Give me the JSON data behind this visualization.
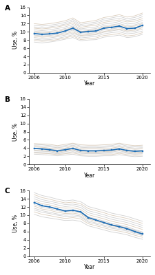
{
  "years": [
    2006,
    2007,
    2008,
    2009,
    2010,
    2011,
    2012,
    2013,
    2014,
    2015,
    2016,
    2017,
    2018,
    2019,
    2020
  ],
  "panel_A": {
    "mean_line": [
      9.6,
      9.4,
      9.5,
      9.7,
      10.2,
      10.9,
      9.9,
      10.1,
      10.2,
      10.9,
      11.1,
      11.4,
      10.8,
      10.9,
      11.6
    ],
    "region_lines": [
      [
        7.5,
        7.3,
        7.5,
        7.8,
        8.2,
        8.6,
        7.8,
        8.0,
        8.1,
        8.7,
        8.9,
        9.2,
        8.6,
        8.8,
        9.4
      ],
      [
        7.9,
        7.7,
        7.8,
        8.1,
        8.5,
        9.0,
        8.1,
        8.3,
        8.5,
        9.1,
        9.3,
        9.6,
        9.0,
        9.2,
        9.8
      ],
      [
        8.2,
        8.0,
        8.1,
        8.4,
        8.8,
        9.3,
        8.5,
        8.7,
        8.9,
        9.5,
        9.8,
        10.0,
        9.5,
        9.7,
        10.2
      ],
      [
        8.6,
        8.4,
        8.5,
        8.8,
        9.2,
        9.7,
        8.9,
        9.1,
        9.3,
        9.9,
        10.2,
        10.5,
        9.9,
        10.1,
        10.7
      ],
      [
        8.9,
        8.7,
        8.8,
        9.1,
        9.5,
        10.0,
        9.1,
        9.3,
        9.5,
        10.1,
        10.4,
        10.7,
        10.2,
        10.4,
        11.0
      ],
      [
        9.2,
        9.0,
        9.1,
        9.4,
        9.8,
        10.4,
        9.4,
        9.6,
        9.8,
        10.5,
        10.7,
        11.0,
        10.5,
        10.7,
        11.3
      ],
      [
        9.5,
        9.3,
        9.4,
        9.7,
        10.1,
        10.7,
        9.7,
        9.9,
        10.1,
        10.8,
        11.0,
        11.3,
        10.8,
        11.0,
        11.6
      ],
      [
        9.9,
        9.7,
        9.8,
        10.1,
        10.5,
        11.1,
        10.1,
        10.3,
        10.5,
        11.2,
        11.4,
        11.7,
        11.2,
        11.4,
        12.0
      ],
      [
        10.2,
        10.0,
        10.1,
        10.4,
        10.8,
        11.4,
        10.4,
        10.6,
        10.8,
        11.5,
        11.7,
        12.0,
        11.5,
        11.7,
        12.3
      ],
      [
        10.5,
        10.3,
        10.5,
        10.8,
        11.2,
        11.8,
        10.7,
        11.0,
        11.2,
        11.9,
        12.1,
        12.5,
        11.9,
        12.1,
        12.8
      ],
      [
        10.9,
        10.7,
        10.9,
        11.2,
        11.6,
        12.2,
        11.1,
        11.4,
        11.6,
        12.3,
        12.6,
        12.9,
        12.4,
        12.6,
        13.2
      ],
      [
        11.2,
        11.0,
        11.2,
        11.5,
        11.9,
        12.6,
        11.4,
        11.7,
        12.0,
        12.7,
        13.0,
        13.3,
        12.8,
        13.0,
        13.7
      ],
      [
        11.6,
        11.4,
        11.6,
        11.9,
        12.3,
        13.0,
        11.8,
        12.1,
        12.4,
        13.1,
        13.4,
        13.8,
        13.2,
        13.5,
        14.2
      ],
      [
        12.0,
        11.8,
        12.0,
        12.3,
        12.7,
        13.4,
        12.2,
        12.5,
        12.8,
        13.5,
        13.8,
        14.2,
        13.6,
        13.9,
        14.6
      ]
    ],
    "ylim": [
      0,
      16
    ],
    "yticks": [
      0,
      2,
      4,
      6,
      8,
      10,
      12,
      14,
      16
    ],
    "ylabel": "Use, %",
    "label": "A"
  },
  "panel_B": {
    "mean_line": [
      3.9,
      3.8,
      3.6,
      3.3,
      3.6,
      3.9,
      3.4,
      3.3,
      3.3,
      3.4,
      3.5,
      3.8,
      3.4,
      3.2,
      3.3
    ],
    "region_lines": [
      [
        2.5,
        2.4,
        2.3,
        2.1,
        2.3,
        2.5,
        2.1,
        2.0,
        2.0,
        2.1,
        2.1,
        2.4,
        2.1,
        1.9,
        2.0
      ],
      [
        2.8,
        2.7,
        2.6,
        2.4,
        2.6,
        2.8,
        2.4,
        2.3,
        2.3,
        2.4,
        2.4,
        2.7,
        2.4,
        2.2,
        2.3
      ],
      [
        3.0,
        2.9,
        2.8,
        2.6,
        2.8,
        3.1,
        2.7,
        2.6,
        2.6,
        2.7,
        2.7,
        3.0,
        2.7,
        2.5,
        2.6
      ],
      [
        3.3,
        3.2,
        3.1,
        2.8,
        3.1,
        3.4,
        2.9,
        2.8,
        2.8,
        2.9,
        3.0,
        3.3,
        2.9,
        2.7,
        2.8
      ],
      [
        3.5,
        3.4,
        3.3,
        3.0,
        3.3,
        3.6,
        3.1,
        3.0,
        3.0,
        3.1,
        3.2,
        3.5,
        3.1,
        2.9,
        3.0
      ],
      [
        3.8,
        3.7,
        3.5,
        3.3,
        3.5,
        3.9,
        3.4,
        3.3,
        3.3,
        3.4,
        3.4,
        3.8,
        3.4,
        3.2,
        3.3
      ],
      [
        4.0,
        3.9,
        3.8,
        3.5,
        3.8,
        4.1,
        3.6,
        3.5,
        3.5,
        3.6,
        3.7,
        4.0,
        3.6,
        3.4,
        3.5
      ],
      [
        4.3,
        4.2,
        4.0,
        3.8,
        4.0,
        4.4,
        3.9,
        3.8,
        3.8,
        3.9,
        4.0,
        4.3,
        3.9,
        3.7,
        3.8
      ],
      [
        4.6,
        4.5,
        4.3,
        4.1,
        4.3,
        4.7,
        4.2,
        4.1,
        4.1,
        4.2,
        4.3,
        4.6,
        4.2,
        4.0,
        4.1
      ],
      [
        4.9,
        4.8,
        4.6,
        4.4,
        4.6,
        5.0,
        4.5,
        4.4,
        4.4,
        4.5,
        4.6,
        5.0,
        4.5,
        4.3,
        4.4
      ],
      [
        5.1,
        5.0,
        4.9,
        4.6,
        4.9,
        5.2,
        4.8,
        4.7,
        4.7,
        4.8,
        4.9,
        5.2,
        4.8,
        4.6,
        4.7
      ]
    ],
    "ylim": [
      0,
      16
    ],
    "yticks": [
      0,
      2,
      4,
      6,
      8,
      10,
      12,
      14,
      16
    ],
    "ylabel": "Use, %",
    "label": "B"
  },
  "panel_C": {
    "mean_line": [
      13.1,
      12.3,
      12.0,
      11.5,
      11.0,
      11.2,
      10.8,
      9.4,
      8.8,
      8.2,
      7.6,
      7.2,
      6.7,
      6.0,
      5.4
    ],
    "region_lines": [
      [
        10.2,
        9.6,
        9.3,
        9.0,
        8.7,
        8.8,
        8.5,
        7.4,
        6.9,
        6.4,
        5.9,
        5.6,
        5.2,
        4.6,
        4.1
      ],
      [
        10.8,
        10.2,
        9.9,
        9.5,
        9.2,
        9.4,
        9.1,
        7.9,
        7.4,
        6.9,
        6.4,
        6.1,
        5.7,
        5.1,
        4.6
      ],
      [
        11.3,
        10.7,
        10.4,
        10.0,
        9.7,
        9.8,
        9.5,
        8.3,
        7.8,
        7.3,
        6.8,
        6.5,
        6.1,
        5.5,
        5.0
      ],
      [
        11.7,
        11.1,
        10.7,
        10.3,
        10.0,
        10.1,
        9.8,
        8.6,
        8.1,
        7.6,
        7.1,
        6.8,
        6.4,
        5.8,
        5.2
      ],
      [
        12.2,
        11.5,
        11.2,
        10.7,
        10.4,
        10.5,
        10.2,
        9.0,
        8.5,
        8.0,
        7.4,
        7.1,
        6.7,
        6.1,
        5.5
      ],
      [
        12.6,
        11.9,
        11.6,
        11.1,
        10.8,
        10.9,
        10.5,
        9.3,
        8.8,
        8.3,
        7.7,
        7.4,
        6.9,
        6.3,
        5.7
      ],
      [
        13.0,
        12.3,
        12.0,
        11.5,
        11.2,
        11.3,
        10.9,
        9.6,
        9.1,
        8.6,
        8.0,
        7.6,
        7.2,
        6.5,
        5.9
      ],
      [
        13.5,
        12.8,
        12.5,
        12.0,
        11.7,
        11.8,
        11.4,
        10.1,
        9.6,
        9.1,
        8.5,
        8.1,
        7.7,
        7.1,
        6.5
      ],
      [
        14.0,
        13.3,
        13.0,
        12.5,
        12.1,
        12.3,
        11.9,
        10.6,
        10.1,
        9.6,
        9.0,
        8.6,
        8.2,
        7.6,
        7.0
      ],
      [
        14.5,
        13.8,
        13.4,
        13.0,
        12.6,
        12.7,
        12.4,
        11.1,
        10.6,
        10.1,
        9.5,
        9.1,
        8.7,
        8.1,
        7.5
      ],
      [
        15.0,
        14.3,
        13.9,
        13.4,
        13.0,
        13.2,
        12.8,
        11.6,
        11.1,
        10.6,
        10.0,
        9.6,
        9.2,
        8.6,
        8.0
      ],
      [
        15.5,
        14.8,
        14.4,
        13.9,
        13.5,
        13.7,
        13.3,
        12.1,
        11.6,
        11.1,
        10.5,
        10.1,
        9.7,
        9.1,
        8.5
      ]
    ],
    "ylim": [
      0,
      16
    ],
    "yticks": [
      0,
      2,
      4,
      6,
      8,
      10,
      12,
      14,
      16
    ],
    "ylabel": "Use, %",
    "label": "C"
  },
  "xticks": [
    2006,
    2010,
    2015,
    2020
  ],
  "xlabel": "Year",
  "mean_color": "#1f6eb5",
  "region_color_main": "#c8c8c8",
  "region_color_alt": "#d4c4b0",
  "region_alpha": 0.85,
  "mean_linewidth": 1.2,
  "region_linewidth": 0.6
}
